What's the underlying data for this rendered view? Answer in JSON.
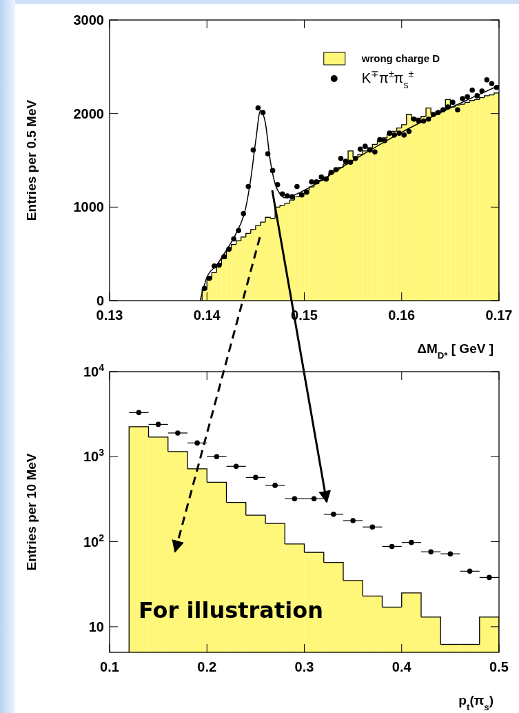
{
  "chart_data": [
    {
      "type": "histogram",
      "xlabel": "ΔM$_{D*}$ [ GeV ]",
      "ylabel": "Entries per 0.5 MeV",
      "xlim": [
        0.13,
        0.17
      ],
      "xticks": [
        0.13,
        0.14,
        0.15,
        0.16,
        0.17
      ],
      "ylim": [
        0,
        3000
      ],
      "yticks": [
        0,
        1000,
        2000,
        3000
      ],
      "legend": "top right",
      "series": [
        {
          "name": "wrong charge D",
          "color": "#fff77a",
          "bins": [
            0.1395,
            0.14,
            0.1405,
            0.141,
            0.1415,
            0.142,
            0.1425,
            0.143,
            0.1435,
            0.144,
            0.1445,
            0.145,
            0.1455,
            0.146,
            0.1465,
            0.147,
            0.1475,
            0.148,
            0.1485,
            0.149,
            0.1495,
            0.15,
            0.1505,
            0.151,
            0.1515,
            0.152,
            0.1525,
            0.153,
            0.1535,
            0.154,
            0.1545,
            0.155,
            0.1555,
            0.156,
            0.1565,
            0.157,
            0.1575,
            0.158,
            0.1585,
            0.159,
            0.1595,
            0.16,
            0.1605,
            0.161,
            0.1615,
            0.162,
            0.1625,
            0.163,
            0.1635,
            0.164,
            0.1645,
            0.165,
            0.1655,
            0.166,
            0.1665,
            0.167,
            0.1675,
            0.168,
            0.1685,
            0.169,
            0.1695,
            0.17
          ],
          "values": [
            120,
            230,
            300,
            380,
            450,
            540,
            600,
            640,
            680,
            720,
            760,
            800,
            840,
            890,
            880,
            1000,
            1020,
            1040,
            1075,
            1110,
            1145,
            1180,
            1215,
            1250,
            1285,
            1320,
            1355,
            1390,
            1425,
            1460,
            1600,
            1530,
            1565,
            1600,
            1635,
            1670,
            1705,
            1740,
            1775,
            1810,
            1845,
            1880,
            1990,
            1930,
            1950,
            1970,
            2060,
            2000,
            2020,
            2030,
            2150,
            2070,
            2090,
            2100,
            2120,
            2140,
            2150,
            2170,
            2190,
            2200,
            2220
          ]
        },
        {
          "type": "line",
          "color": "#000000",
          "x": [
            0.1393,
            0.14,
            0.141,
            0.142,
            0.143,
            0.144,
            0.1445,
            0.145,
            0.1455,
            0.146,
            0.1465,
            0.147,
            0.1475,
            0.148,
            0.149,
            0.15,
            0.155,
            0.16,
            0.165,
            0.17
          ],
          "values": [
            0,
            250,
            380,
            540,
            720,
            1000,
            1300,
            1700,
            2030,
            1900,
            1500,
            1250,
            1140,
            1100,
            1130,
            1180,
            1500,
            1800,
            2060,
            2300
          ]
        },
        {
          "type": "scatter",
          "marker": "circle",
          "name": "K$^{∓}$π$^{±}$π$_{s}$$^{±}$",
          "color": "#000000",
          "x": [
            0.13975,
            0.14025,
            0.14075,
            0.14125,
            0.14175,
            0.14225,
            0.14275,
            0.14325,
            0.14375,
            0.14425,
            0.14475,
            0.14525,
            0.14575,
            0.14625,
            0.14675,
            0.14725,
            0.14775,
            0.14825,
            0.14875,
            0.14925,
            0.14975,
            0.15025,
            0.15075,
            0.15125,
            0.15175,
            0.15225,
            0.15275,
            0.15325,
            0.15375,
            0.15425,
            0.15475,
            0.15525,
            0.15575,
            0.15625,
            0.15675,
            0.15725,
            0.15775,
            0.15825,
            0.15875,
            0.15925,
            0.15975,
            0.16025,
            0.16075,
            0.16125,
            0.16175,
            0.16225,
            0.16275,
            0.16325,
            0.16375,
            0.16425,
            0.16475,
            0.16525,
            0.16575,
            0.16625,
            0.16675,
            0.16725,
            0.16775,
            0.16825,
            0.16875,
            0.16925,
            0.16975
          ],
          "values": [
            130,
            240,
            370,
            380,
            470,
            550,
            660,
            750,
            930,
            1220,
            1610,
            2060,
            2010,
            1570,
            1390,
            1240,
            1140,
            1120,
            1110,
            1220,
            1130,
            1160,
            1270,
            1270,
            1320,
            1300,
            1370,
            1400,
            1520,
            1490,
            1480,
            1520,
            1620,
            1650,
            1610,
            1590,
            1720,
            1710,
            1790,
            1770,
            1790,
            1770,
            1810,
            1940,
            1920,
            1920,
            1940,
            1990,
            2010,
            2040,
            2070,
            2120,
            2040,
            2160,
            2180,
            2250,
            2190,
            2240,
            2360,
            2320,
            2280
          ]
        }
      ]
    },
    {
      "type": "histogram",
      "xlabel": "p$_{t}$(π$_{s}$)",
      "ylabel": "Entries per 10 MeV",
      "xlim": [
        0.1,
        0.5
      ],
      "xticks": [
        0.1,
        0.2,
        0.3,
        0.4,
        0.5
      ],
      "ylim": [
        5,
        10000
      ],
      "yticks": [
        {
          "value": 10,
          "label": "10"
        },
        {
          "value": 100,
          "label": "10$^{2}$"
        },
        {
          "value": 1000,
          "label": "10$^{3}$"
        },
        {
          "value": 10000,
          "label": "10$^{4}$"
        }
      ],
      "log": true,
      "annotations": [
        "For illustration"
      ],
      "series": [
        {
          "color": "#fff77a",
          "bins": [
            0.12,
            0.14,
            0.16,
            0.18,
            0.2,
            0.22,
            0.24,
            0.26,
            0.28,
            0.3,
            0.32,
            0.34,
            0.36,
            0.38,
            0.4,
            0.42,
            0.44,
            0.46,
            0.48,
            0.5
          ],
          "values": [
            2250,
            1700,
            1150,
            720,
            500,
            290,
            205,
            164,
            94,
            75,
            57,
            35,
            23,
            17,
            25,
            13,
            6.2,
            6.2,
            13
          ]
        },
        {
          "type": "scatter",
          "marker": "circle",
          "color": "#000000",
          "x": [
            0.13,
            0.15,
            0.17,
            0.19,
            0.21,
            0.23,
            0.25,
            0.27,
            0.29,
            0.31,
            0.33,
            0.35,
            0.37,
            0.39,
            0.41,
            0.43,
            0.45,
            0.47,
            0.49
          ],
          "values": [
            3300,
            2400,
            1900,
            1450,
            1000,
            770,
            570,
            460,
            320,
            320,
            210,
            177,
            149,
            88,
            98,
            76,
            72,
            45,
            38
          ],
          "xerrors": [
            0.01,
            0.01,
            0.01,
            0.01,
            0.01,
            0.01,
            0.01,
            0.01,
            0.01,
            0.01,
            0.01,
            0.01,
            0.01,
            0.01,
            0.01,
            0.01,
            0.01,
            0.01,
            0.01
          ]
        }
      ]
    }
  ]
}
